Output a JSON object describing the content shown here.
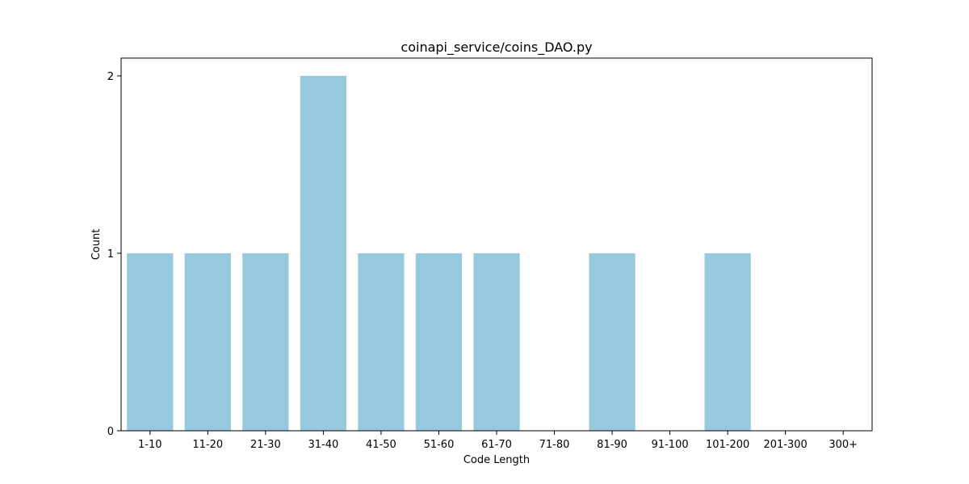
{
  "chart_data": {
    "type": "bar",
    "title": "coinapi_service/coins_DAO.py",
    "xlabel": "Code Length",
    "ylabel": "Count",
    "categories": [
      "1-10",
      "11-20",
      "21-30",
      "31-40",
      "41-50",
      "51-60",
      "61-70",
      "71-80",
      "81-90",
      "91-100",
      "101-200",
      "201-300",
      "300+"
    ],
    "values": [
      1,
      1,
      1,
      2,
      1,
      1,
      1,
      0,
      1,
      0,
      1,
      0,
      0
    ],
    "ylim": [
      0,
      2.1
    ],
    "yticks": [
      "0",
      "1",
      "2"
    ],
    "bar_color": "#96c9de",
    "grid": false,
    "legend": "none"
  }
}
